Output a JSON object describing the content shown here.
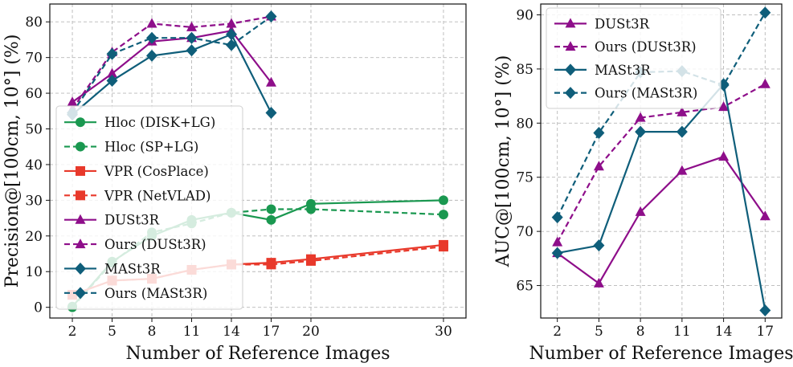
{
  "chart_data": [
    {
      "type": "line",
      "xlabel": "Number of Reference Images",
      "ylabel": "Precision@[100cm, 10°] (%)",
      "xlim": [
        0.3,
        31.7
      ],
      "ylim": [
        -3,
        85
      ],
      "xticks": [
        2,
        5,
        8,
        11,
        14,
        17,
        20,
        30
      ],
      "yticks": [
        0,
        10,
        20,
        30,
        40,
        50,
        60,
        70,
        80
      ],
      "grid": true,
      "legend_position": "lower-left",
      "series": [
        {
          "name": "Hloc (DISK+LG)",
          "color": "#1a9850",
          "dash": "solid",
          "marker": "circle",
          "x": [
            2,
            5,
            8,
            11,
            14,
            17,
            20,
            30
          ],
          "values": [
            0.2,
            12.8,
            20.0,
            24.5,
            26.5,
            24.5,
            29.0,
            30.0
          ]
        },
        {
          "name": "Hloc (SP+LG)",
          "color": "#1a9850",
          "dash": "dashed",
          "marker": "circle",
          "x": [
            2,
            5,
            8,
            11,
            14,
            17,
            20,
            30
          ],
          "values": [
            0.0,
            12.5,
            21.0,
            23.5,
            26.5,
            27.5,
            27.5,
            26.0
          ]
        },
        {
          "name": "VPR (CosPlace)",
          "color": "#e8392b",
          "dash": "solid",
          "marker": "square",
          "x": [
            2,
            5,
            8,
            11,
            14,
            17,
            20,
            30
          ],
          "values": [
            3.5,
            7.5,
            8.0,
            10.5,
            12.0,
            12.5,
            13.5,
            17.5
          ]
        },
        {
          "name": "VPR (NetVLAD)",
          "color": "#e8392b",
          "dash": "dashed",
          "marker": "square",
          "x": [
            2,
            5,
            8,
            11,
            14,
            17,
            20,
            30
          ],
          "values": [
            3.5,
            7.5,
            8.0,
            10.5,
            12.0,
            12.0,
            13.0,
            17.0
          ]
        },
        {
          "name": "DUSt3R",
          "color": "#8e0e8a",
          "dash": "solid",
          "marker": "triangle",
          "x": [
            2,
            5,
            8,
            11,
            14,
            17
          ],
          "values": [
            57.5,
            65.5,
            74.5,
            75.5,
            77.5,
            63.0
          ]
        },
        {
          "name": "Ours (DUSt3R)",
          "color": "#8e0e8a",
          "dash": "dashed",
          "marker": "triangle",
          "x": [
            2,
            5,
            8,
            11,
            14,
            17
          ],
          "values": [
            55.5,
            71.5,
            79.5,
            78.5,
            79.5,
            81.5
          ]
        },
        {
          "name": "MASt3R",
          "color": "#0f5e7a",
          "dash": "solid",
          "marker": "diamond",
          "x": [
            2,
            5,
            8,
            11,
            14,
            17
          ],
          "values": [
            54.0,
            63.5,
            70.5,
            72.0,
            76.5,
            54.5
          ]
        },
        {
          "name": "Ours (MASt3R)",
          "color": "#0f5e7a",
          "dash": "dashed",
          "marker": "diamond",
          "x": [
            2,
            5,
            8,
            11,
            14,
            17
          ],
          "values": [
            54.5,
            71.0,
            75.5,
            75.5,
            73.5,
            81.5
          ]
        }
      ],
      "legend": [
        "Hloc (DISK+LG)",
        "Hloc (SP+LG)",
        "VPR (CosPlace)",
        "VPR (NetVLAD)",
        "DUSt3R",
        "Ours (DUSt3R)",
        "MASt3R",
        "Ours (MASt3R)"
      ]
    },
    {
      "type": "line",
      "xlabel": "Number of Reference Images",
      "ylabel": "AUC@[100cm, 10°] (%)",
      "xlim": [
        0.8,
        18.2
      ],
      "ylim": [
        62.0,
        91.0
      ],
      "xticks": [
        2,
        5,
        8,
        11,
        14,
        17
      ],
      "yticks": [
        65,
        70,
        75,
        80,
        85,
        90
      ],
      "grid": true,
      "legend_position": "top-left",
      "series": [
        {
          "name": "DUSt3R",
          "color": "#8e0e8a",
          "dash": "solid",
          "marker": "triangle",
          "x": [
            2,
            5,
            8,
            11,
            14,
            17
          ],
          "values": [
            68.0,
            65.2,
            71.8,
            75.6,
            76.9,
            71.4
          ]
        },
        {
          "name": "Ours (DUSt3R)",
          "color": "#8e0e8a",
          "dash": "dashed",
          "marker": "triangle",
          "x": [
            2,
            5,
            8,
            11,
            14,
            17
          ],
          "values": [
            69.0,
            76.0,
            80.5,
            81.0,
            81.5,
            83.6
          ]
        },
        {
          "name": "MASt3R",
          "color": "#0f5e7a",
          "dash": "solid",
          "marker": "diamond",
          "x": [
            2,
            5,
            8,
            11,
            14,
            17
          ],
          "values": [
            68.0,
            68.7,
            79.2,
            79.2,
            83.6,
            62.7
          ]
        },
        {
          "name": "Ours (MASt3R)",
          "color": "#0f5e7a",
          "dash": "dashed",
          "marker": "diamond",
          "x": [
            2,
            5,
            8,
            11,
            14,
            17
          ],
          "values": [
            71.3,
            79.1,
            84.7,
            84.8,
            83.5,
            90.2
          ]
        }
      ],
      "legend": [
        "DUSt3R",
        "Ours (DUSt3R)",
        "MASt3R",
        "Ours (MASt3R)"
      ]
    }
  ]
}
